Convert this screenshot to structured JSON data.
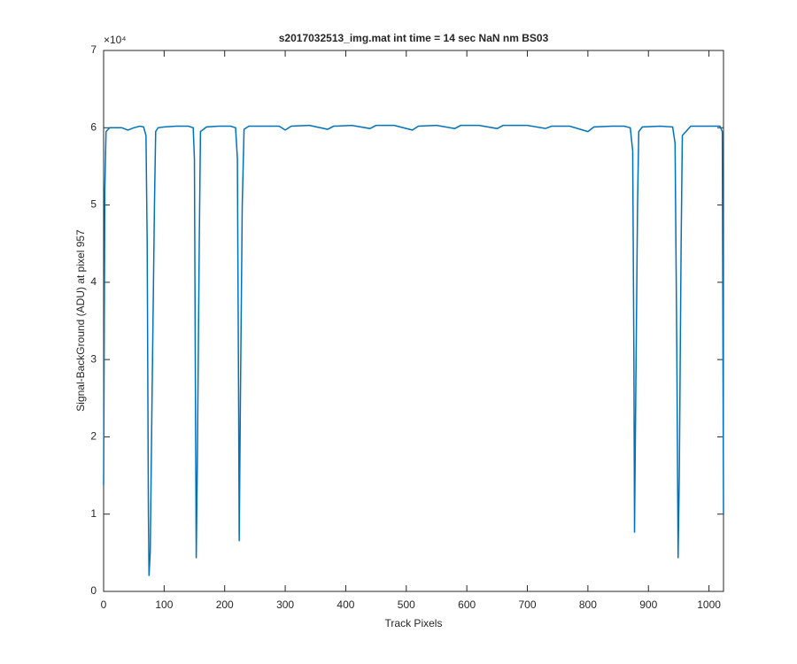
{
  "chart_data": {
    "type": "line",
    "title": "s2017032513_img.mat int time = 14 sec  NaN nm BS03",
    "xlabel": "Track Pixels",
    "ylabel": "Signal-BackGround (ADU) at pixel 957",
    "y_exponent": "×10⁴",
    "x": [
      0,
      2,
      4,
      10,
      20,
      30,
      40,
      50,
      60,
      66,
      70,
      72,
      74,
      75,
      77,
      80,
      84,
      86,
      90,
      100,
      120,
      140,
      148,
      150,
      152,
      153,
      155,
      158,
      160,
      170,
      190,
      210,
      218,
      221,
      223,
      224,
      226,
      229,
      232,
      240,
      270,
      290,
      300,
      310,
      340,
      370,
      380,
      410,
      440,
      450,
      480,
      510,
      520,
      550,
      580,
      590,
      620,
      650,
      660,
      700,
      730,
      740,
      770,
      800,
      810,
      840,
      860,
      870,
      874,
      876,
      877,
      879,
      882,
      884,
      890,
      920,
      940,
      944,
      947,
      949,
      951,
      954,
      956,
      970,
      1000,
      1018,
      1022,
      1024
    ],
    "series": [
      {
        "name": "signal",
        "color": "#0072bd",
        "values": [
          1.37,
          5.2,
          5.95,
          6.0,
          6.0,
          6.0,
          5.97,
          6.0,
          6.02,
          6.01,
          5.9,
          4.5,
          1.0,
          0.2,
          0.5,
          2.5,
          5.0,
          5.95,
          6.0,
          6.01,
          6.02,
          6.02,
          6.0,
          5.6,
          2.0,
          0.43,
          1.8,
          4.5,
          5.95,
          6.01,
          6.02,
          6.02,
          6.0,
          5.6,
          2.5,
          0.65,
          2.5,
          5.0,
          5.98,
          6.02,
          6.02,
          6.02,
          5.97,
          6.02,
          6.03,
          5.98,
          6.02,
          6.03,
          5.99,
          6.03,
          6.03,
          5.97,
          6.02,
          6.03,
          5.99,
          6.03,
          6.03,
          5.99,
          6.03,
          6.03,
          5.99,
          6.02,
          6.02,
          5.95,
          6.01,
          6.02,
          6.02,
          6.0,
          5.7,
          3.0,
          0.76,
          2.5,
          5.0,
          5.95,
          6.01,
          6.02,
          6.01,
          5.8,
          3.0,
          0.43,
          1.5,
          4.5,
          5.9,
          6.02,
          6.02,
          6.02,
          5.95,
          1.0
        ]
      }
    ],
    "xlim": [
      0,
      1024
    ],
    "xticks": [
      0,
      100,
      200,
      300,
      400,
      500,
      600,
      700,
      800,
      900,
      1000
    ],
    "ylim": [
      0,
      7
    ],
    "yticks": [
      0,
      1,
      2,
      3,
      4,
      5,
      6,
      7
    ],
    "grid": false
  }
}
